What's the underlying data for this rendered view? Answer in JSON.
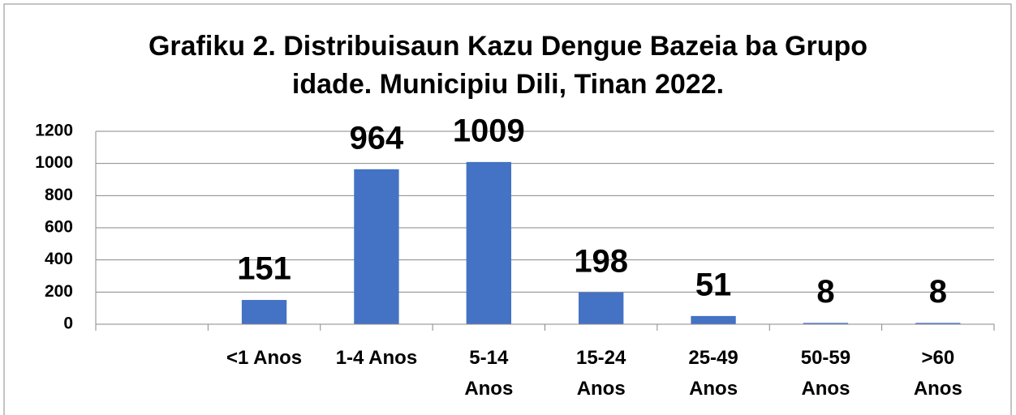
{
  "chart_data": {
    "type": "bar",
    "title": "Grafiku 2. Distribuisaun Kazu Dengue Bazeia ba Grupo\nidade. Municipiu Dili, Tinan 2022.",
    "categories": [
      null,
      "<1 Anos",
      "1-4 Anos",
      "5-14\nAnos",
      "15-24\nAnos",
      "25-49\nAnos",
      "50-59\nAnos",
      ">60\nAnos"
    ],
    "values": [
      null,
      151,
      964,
      1009,
      198,
      51,
      8,
      8
    ],
    "color": "#4472c4",
    "ylim": [
      0,
      1200
    ],
    "yticks": [
      0,
      200,
      400,
      600,
      800,
      1000,
      1200
    ],
    "grid": true
  }
}
